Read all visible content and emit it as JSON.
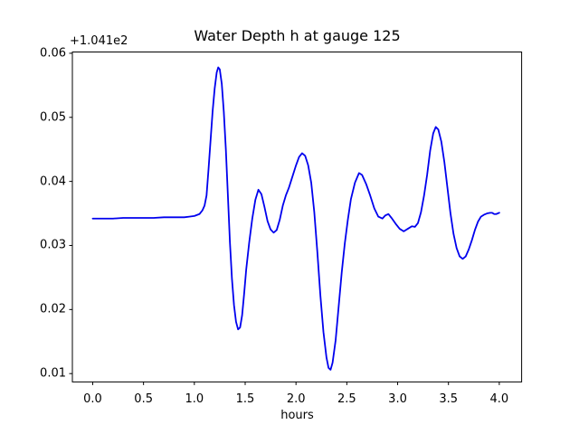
{
  "figure": {
    "background_color": "#ffffff",
    "axis_color": "#000000",
    "text_color": "#000000"
  },
  "chart_data": {
    "type": "line",
    "title": "Water Depth h at gauge 125",
    "xlabel": "hours",
    "ylabel": "",
    "y_axis_offset": "+1.041e2",
    "grid": false,
    "legend": null,
    "xlim": [
      -0.2,
      4.22
    ],
    "ylim": [
      0.0087,
      0.0602
    ],
    "xtick_values": [
      0.0,
      0.5,
      1.0,
      1.5,
      2.0,
      2.5,
      3.0,
      3.5,
      4.0
    ],
    "xtick_labels": [
      "0.0",
      "0.5",
      "1.0",
      "1.5",
      "2.0",
      "2.5",
      "3.0",
      "3.5",
      "4.0"
    ],
    "ytick_values": [
      0.01,
      0.02,
      0.03,
      0.04,
      0.05,
      0.06
    ],
    "ytick_labels": [
      "0.01",
      "0.02",
      "0.03",
      "0.04",
      "0.05",
      "0.06"
    ],
    "series": [
      {
        "name": "water depth h",
        "color": "#0000ee",
        "line_width": 1.8,
        "x": [
          0.0,
          0.1,
          0.2,
          0.3,
          0.4,
          0.5,
          0.6,
          0.7,
          0.8,
          0.9,
          0.95,
          1.0,
          1.05,
          1.08,
          1.1,
          1.12,
          1.14,
          1.16,
          1.18,
          1.2,
          1.22,
          1.235,
          1.25,
          1.27,
          1.29,
          1.31,
          1.33,
          1.35,
          1.37,
          1.39,
          1.41,
          1.43,
          1.45,
          1.47,
          1.49,
          1.51,
          1.54,
          1.57,
          1.6,
          1.63,
          1.66,
          1.69,
          1.72,
          1.75,
          1.78,
          1.81,
          1.84,
          1.87,
          1.9,
          1.93,
          1.96,
          2.0,
          2.03,
          2.06,
          2.09,
          2.12,
          2.15,
          2.18,
          2.21,
          2.24,
          2.27,
          2.3,
          2.32,
          2.34,
          2.36,
          2.39,
          2.42,
          2.45,
          2.48,
          2.51,
          2.54,
          2.58,
          2.62,
          2.65,
          2.69,
          2.73,
          2.77,
          2.81,
          2.85,
          2.88,
          2.91,
          2.94,
          2.98,
          3.02,
          3.06,
          3.1,
          3.14,
          3.17,
          3.2,
          3.23,
          3.26,
          3.29,
          3.32,
          3.35,
          3.375,
          3.4,
          3.43,
          3.46,
          3.49,
          3.52,
          3.55,
          3.58,
          3.61,
          3.64,
          3.67,
          3.7,
          3.73,
          3.76,
          3.79,
          3.82,
          3.85,
          3.88,
          3.91,
          3.93,
          3.95,
          3.97,
          4.0
        ],
        "y": [
          0.0342,
          0.0342,
          0.0342,
          0.0343,
          0.0343,
          0.0343,
          0.0343,
          0.0344,
          0.0344,
          0.0344,
          0.0345,
          0.0346,
          0.0349,
          0.0355,
          0.0362,
          0.0378,
          0.042,
          0.0465,
          0.051,
          0.0545,
          0.057,
          0.0578,
          0.0575,
          0.0552,
          0.0508,
          0.045,
          0.0378,
          0.0305,
          0.0248,
          0.0207,
          0.0181,
          0.0169,
          0.0172,
          0.0191,
          0.0225,
          0.0262,
          0.0305,
          0.0342,
          0.0371,
          0.0387,
          0.038,
          0.036,
          0.0338,
          0.0325,
          0.032,
          0.0324,
          0.034,
          0.0362,
          0.0378,
          0.039,
          0.0405,
          0.0425,
          0.0438,
          0.0444,
          0.044,
          0.0425,
          0.0398,
          0.0352,
          0.029,
          0.0222,
          0.0165,
          0.0125,
          0.0109,
          0.0106,
          0.0117,
          0.0152,
          0.0205,
          0.0258,
          0.0303,
          0.034,
          0.0372,
          0.0398,
          0.0413,
          0.041,
          0.0396,
          0.0378,
          0.0358,
          0.0345,
          0.0342,
          0.0347,
          0.0349,
          0.0343,
          0.0334,
          0.0326,
          0.0322,
          0.0326,
          0.033,
          0.0329,
          0.0335,
          0.0352,
          0.0378,
          0.041,
          0.0448,
          0.0475,
          0.0485,
          0.0481,
          0.0462,
          0.043,
          0.039,
          0.035,
          0.0318,
          0.0296,
          0.0283,
          0.0279,
          0.0283,
          0.0294,
          0.0308,
          0.0324,
          0.0337,
          0.0345,
          0.0348,
          0.035,
          0.0351,
          0.0351,
          0.0349,
          0.0349,
          0.0351
        ]
      }
    ]
  }
}
